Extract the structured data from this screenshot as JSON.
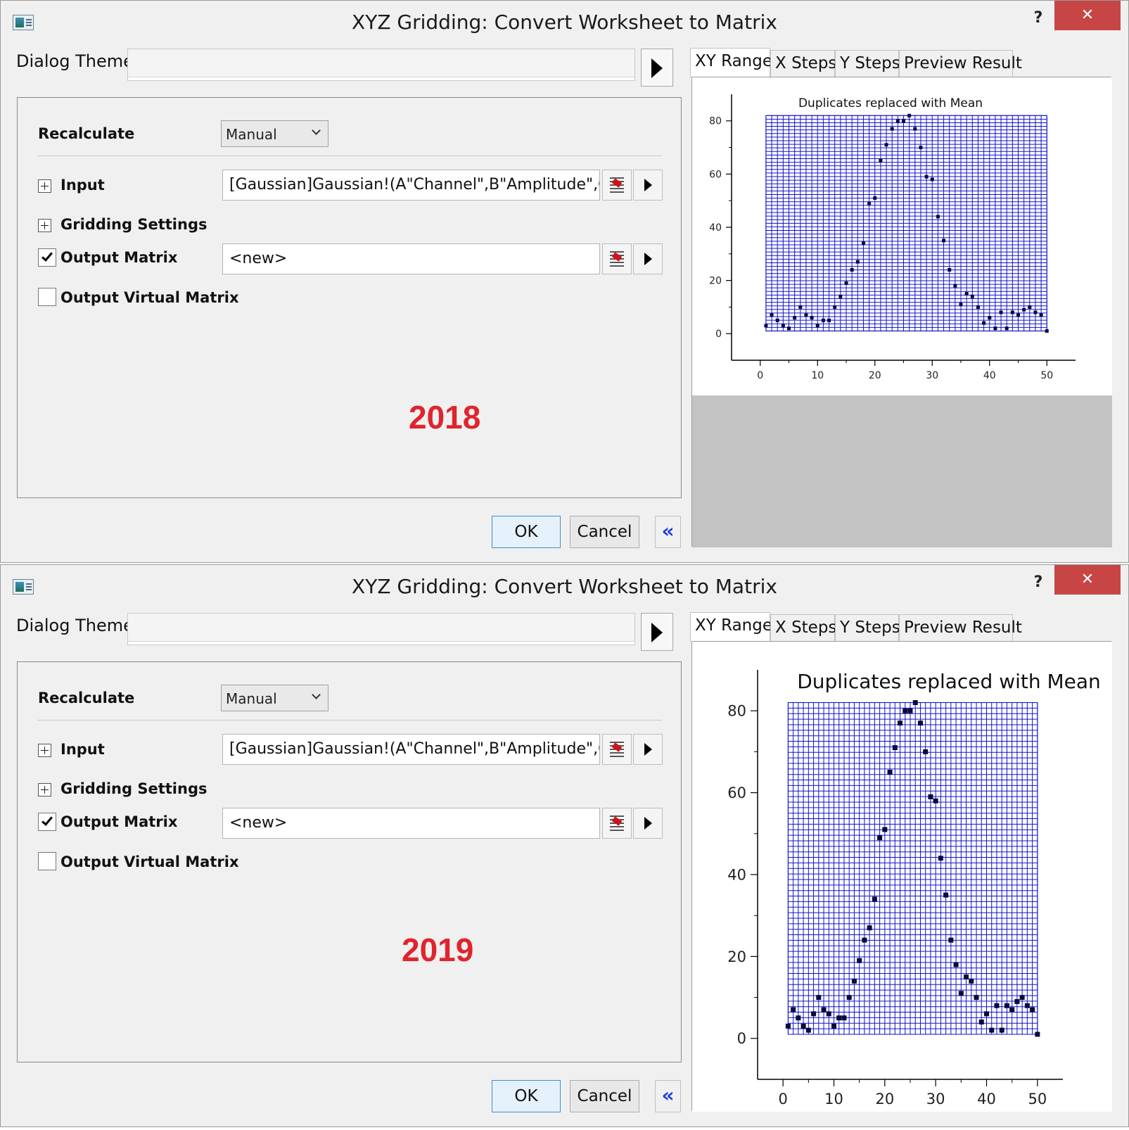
{
  "dialogs": [
    {
      "title": "XYZ Gridding: Convert Worksheet to Matrix",
      "help_label": "?",
      "close_label": "✕",
      "dialog_theme_label": "Dialog Theme",
      "dialog_theme_value": "",
      "recalculate_label": "Recalculate",
      "recalculate_value": "Manual",
      "input_label": "Input",
      "input_value": "[Gaussian]Gaussian!(A\"Channel\",B\"Amplitude\",C\"E",
      "gridding_settings_label": "Gridding Settings",
      "output_matrix_label": "Output Matrix",
      "output_matrix_checked": true,
      "output_matrix_value": "<new>",
      "output_virtual_matrix_label": "Output Virtual Matrix",
      "output_virtual_matrix_checked": false,
      "year_annotation": "2018",
      "ok_label": "OK",
      "cancel_label": "Cancel",
      "collapse_label": "«",
      "tabs": [
        "XY Range",
        "X Steps",
        "Y Steps",
        "Preview Result"
      ],
      "active_tab": "XY Range",
      "chart_title": "Duplicates replaced with Mean"
    },
    {
      "title": "XYZ Gridding: Convert Worksheet to Matrix",
      "help_label": "?",
      "close_label": "✕",
      "dialog_theme_label": "Dialog Theme",
      "dialog_theme_value": "",
      "recalculate_label": "Recalculate",
      "recalculate_value": "Manual",
      "input_label": "Input",
      "input_value": "[Gaussian]Gaussian!(A\"Channel\",B\"Amplitude\",C\"E",
      "gridding_settings_label": "Gridding Settings",
      "output_matrix_label": "Output Matrix",
      "output_matrix_checked": true,
      "output_matrix_value": "<new>",
      "output_virtual_matrix_label": "Output Virtual Matrix",
      "output_virtual_matrix_checked": false,
      "year_annotation": "2019",
      "ok_label": "OK",
      "cancel_label": "Cancel",
      "collapse_label": "«",
      "tabs": [
        "XY Range",
        "X Steps",
        "Y Steps",
        "Preview Result"
      ],
      "active_tab": "XY Range",
      "chart_title": "Duplicates replaced with Mean"
    }
  ],
  "colors": {
    "grid_line": "#1010d0",
    "point": "#0a0a3c",
    "close_button": "#c74545",
    "year_text": "#e0242e",
    "collapse_arrow": "#1e3fd6"
  },
  "chart_data": [
    {
      "type": "scatter",
      "title": "Duplicates replaced with Mean",
      "xlabel": "",
      "ylabel": "",
      "xlim": [
        -5,
        55
      ],
      "ylim": [
        -10,
        90
      ],
      "x_ticks": [
        0,
        10,
        20,
        30,
        40,
        50
      ],
      "y_ticks": [
        0,
        20,
        40,
        60,
        80
      ],
      "grid": "dense blue mesh over data range x 1–50, y 1–82",
      "grid_extent": {
        "x": [
          1,
          50
        ],
        "y": [
          1,
          82
        ]
      },
      "points": [
        [
          1,
          3
        ],
        [
          2,
          7
        ],
        [
          3,
          5
        ],
        [
          4,
          3
        ],
        [
          5,
          2
        ],
        [
          6,
          6
        ],
        [
          7,
          10
        ],
        [
          8,
          7
        ],
        [
          9,
          6
        ],
        [
          10,
          3
        ],
        [
          11,
          5
        ],
        [
          12,
          5
        ],
        [
          13,
          10
        ],
        [
          14,
          14
        ],
        [
          15,
          19
        ],
        [
          16,
          24
        ],
        [
          17,
          27
        ],
        [
          18,
          34
        ],
        [
          19,
          49
        ],
        [
          20,
          51
        ],
        [
          21,
          65
        ],
        [
          22,
          71
        ],
        [
          23,
          77
        ],
        [
          24,
          80
        ],
        [
          25,
          80
        ],
        [
          26,
          82
        ],
        [
          27,
          77
        ],
        [
          28,
          70
        ],
        [
          29,
          59
        ],
        [
          30,
          58
        ],
        [
          31,
          44
        ],
        [
          32,
          35
        ],
        [
          33,
          24
        ],
        [
          34,
          18
        ],
        [
          35,
          11
        ],
        [
          36,
          15
        ],
        [
          37,
          14
        ],
        [
          38,
          10
        ],
        [
          39,
          4
        ],
        [
          40,
          6
        ],
        [
          41,
          2
        ],
        [
          42,
          8
        ],
        [
          43,
          2
        ],
        [
          44,
          8
        ],
        [
          45,
          7
        ],
        [
          46,
          9
        ],
        [
          47,
          10
        ],
        [
          48,
          8
        ],
        [
          49,
          7
        ],
        [
          50,
          1
        ]
      ]
    },
    {
      "type": "scatter",
      "title": "Duplicates replaced with Mean",
      "xlabel": "",
      "ylabel": "",
      "xlim": [
        -5,
        55
      ],
      "ylim": [
        -10,
        90
      ],
      "x_ticks": [
        0,
        10,
        20,
        30,
        40,
        50
      ],
      "y_ticks": [
        0,
        20,
        40,
        60,
        80
      ],
      "grid": "dense blue mesh over data range x 1–50, y 1–82",
      "grid_extent": {
        "x": [
          1,
          50
        ],
        "y": [
          1,
          82
        ]
      },
      "points": [
        [
          1,
          3
        ],
        [
          2,
          7
        ],
        [
          3,
          5
        ],
        [
          4,
          3
        ],
        [
          5,
          2
        ],
        [
          6,
          6
        ],
        [
          7,
          10
        ],
        [
          8,
          7
        ],
        [
          9,
          6
        ],
        [
          10,
          3
        ],
        [
          11,
          5
        ],
        [
          12,
          5
        ],
        [
          13,
          10
        ],
        [
          14,
          14
        ],
        [
          15,
          19
        ],
        [
          16,
          24
        ],
        [
          17,
          27
        ],
        [
          18,
          34
        ],
        [
          19,
          49
        ],
        [
          20,
          51
        ],
        [
          21,
          65
        ],
        [
          22,
          71
        ],
        [
          23,
          77
        ],
        [
          24,
          80
        ],
        [
          25,
          80
        ],
        [
          26,
          82
        ],
        [
          27,
          77
        ],
        [
          28,
          70
        ],
        [
          29,
          59
        ],
        [
          30,
          58
        ],
        [
          31,
          44
        ],
        [
          32,
          35
        ],
        [
          33,
          24
        ],
        [
          34,
          18
        ],
        [
          35,
          11
        ],
        [
          36,
          15
        ],
        [
          37,
          14
        ],
        [
          38,
          10
        ],
        [
          39,
          4
        ],
        [
          40,
          6
        ],
        [
          41,
          2
        ],
        [
          42,
          8
        ],
        [
          43,
          2
        ],
        [
          44,
          8
        ],
        [
          45,
          7
        ],
        [
          46,
          9
        ],
        [
          47,
          10
        ],
        [
          48,
          8
        ],
        [
          49,
          7
        ],
        [
          50,
          1
        ]
      ]
    }
  ]
}
